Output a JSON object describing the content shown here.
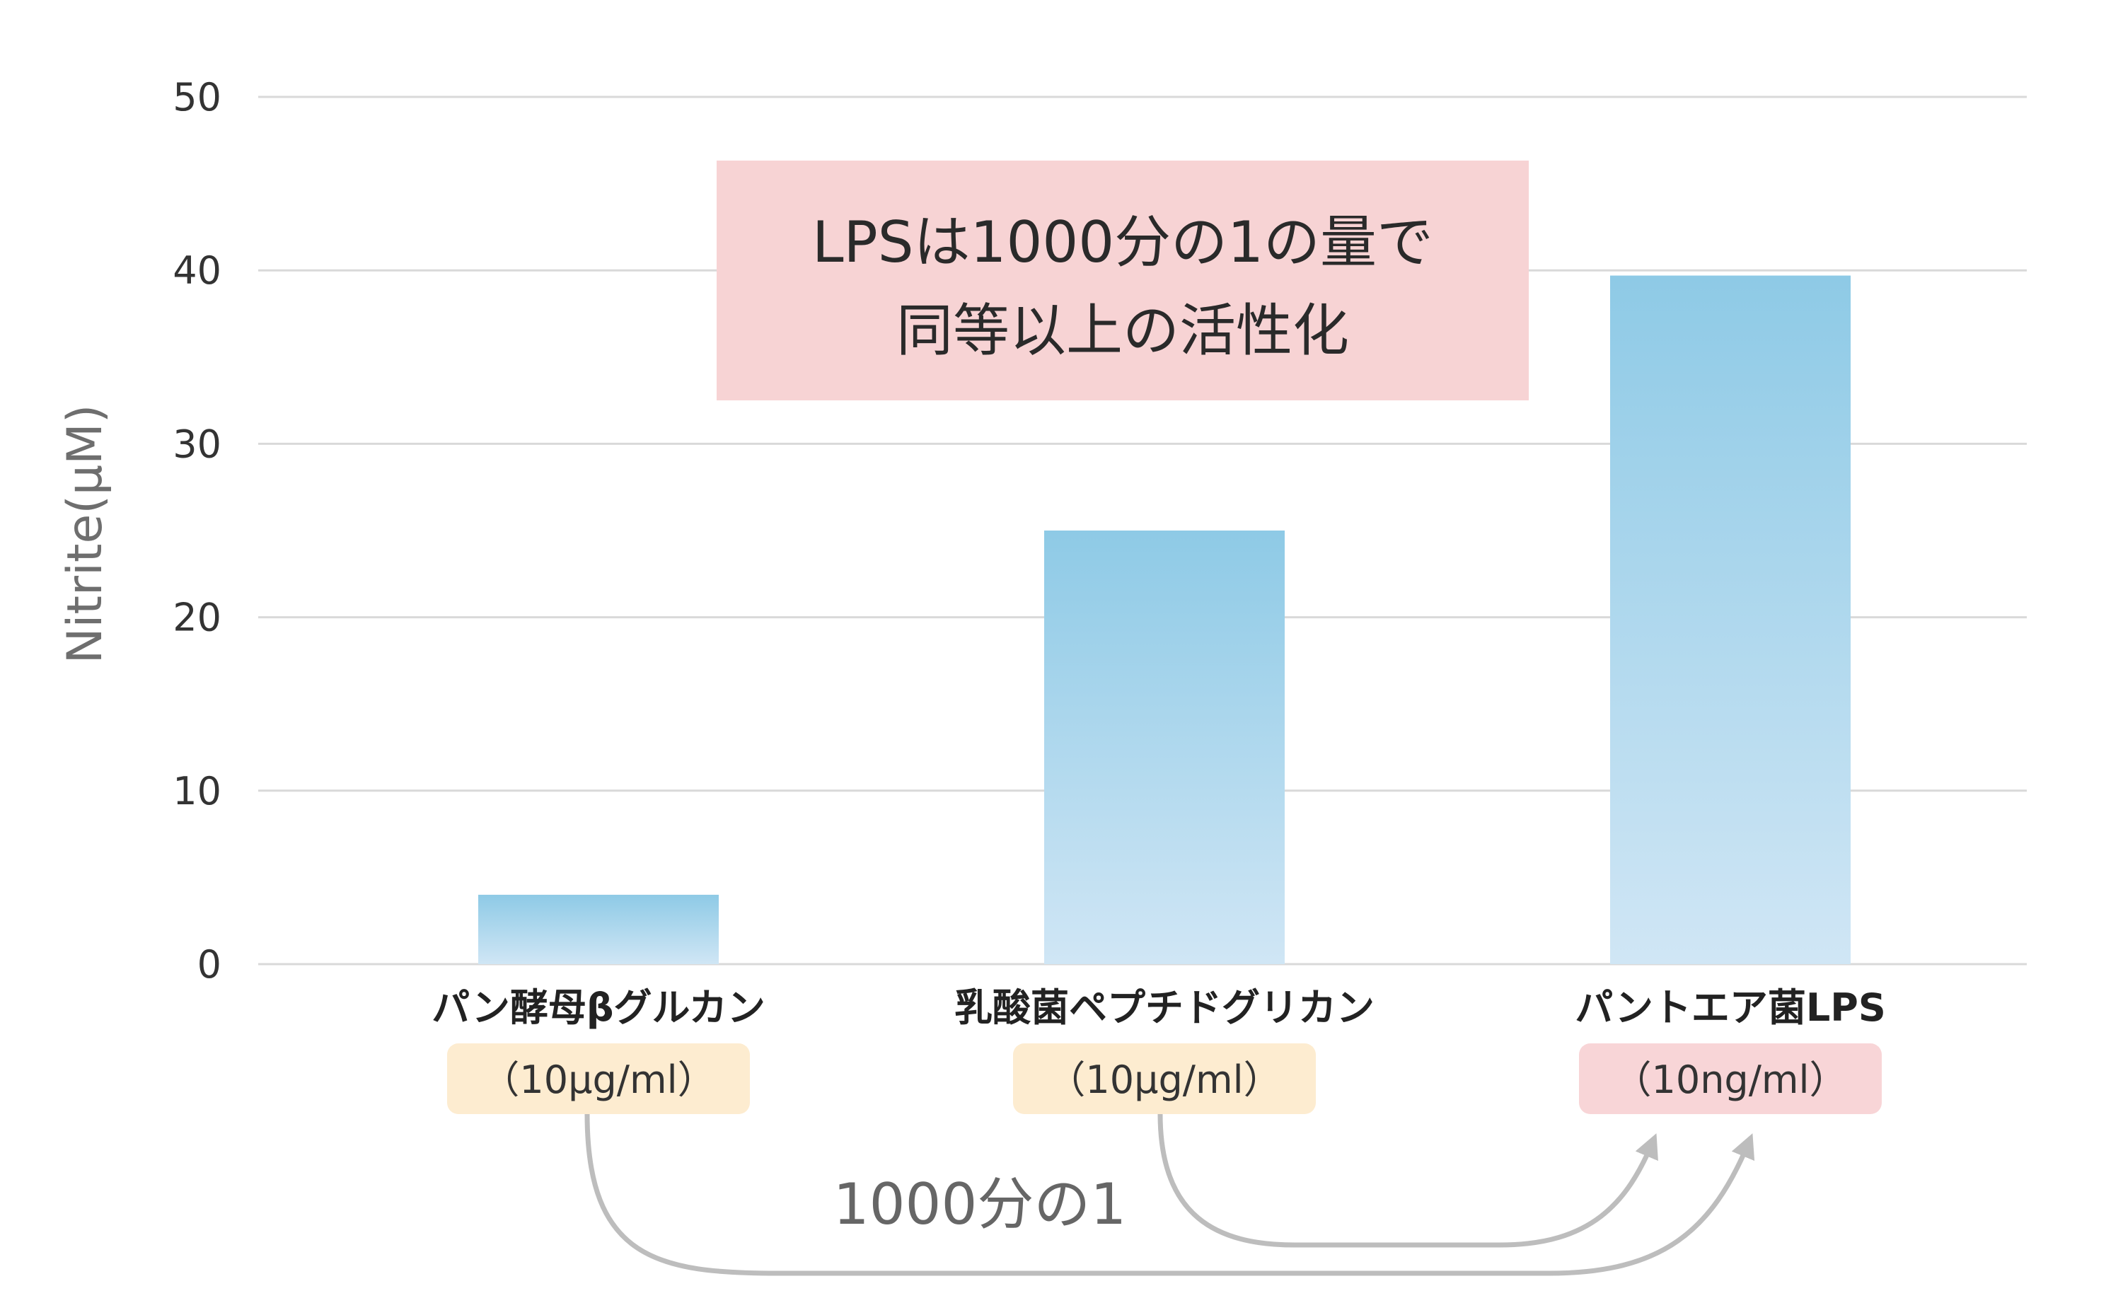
{
  "chart_data": {
    "type": "bar",
    "categories": [
      "パン酵母βグルカン",
      "乳酸菌ペプチドグリカン",
      "パントエア菌LPS"
    ],
    "doses": [
      "（10μg/ml）",
      "（10μg/ml）",
      "（10ng/ml）"
    ],
    "values": [
      4,
      25,
      39.7
    ],
    "ylabel": "Nitrite(μM)",
    "ylim": [
      0,
      50
    ],
    "yticks": [
      "0",
      "10",
      "20",
      "30",
      "40",
      "50"
    ],
    "grid": true,
    "callout": {
      "line1": "LPSは1000分の1の量で",
      "line2": "同等以上の活性化"
    },
    "ratio_annotation": "1000分の1"
  },
  "colors": {
    "bar_top": "#8ecae6",
    "bar_bottom": "#d0e6f5",
    "grid": "#d9d9d9",
    "callout_bg": "#f7d3d4",
    "dose_bg_default": "#fdecd0",
    "dose_bg_highlight": "#f8d5d7",
    "arrow": "#bdbdbd"
  }
}
